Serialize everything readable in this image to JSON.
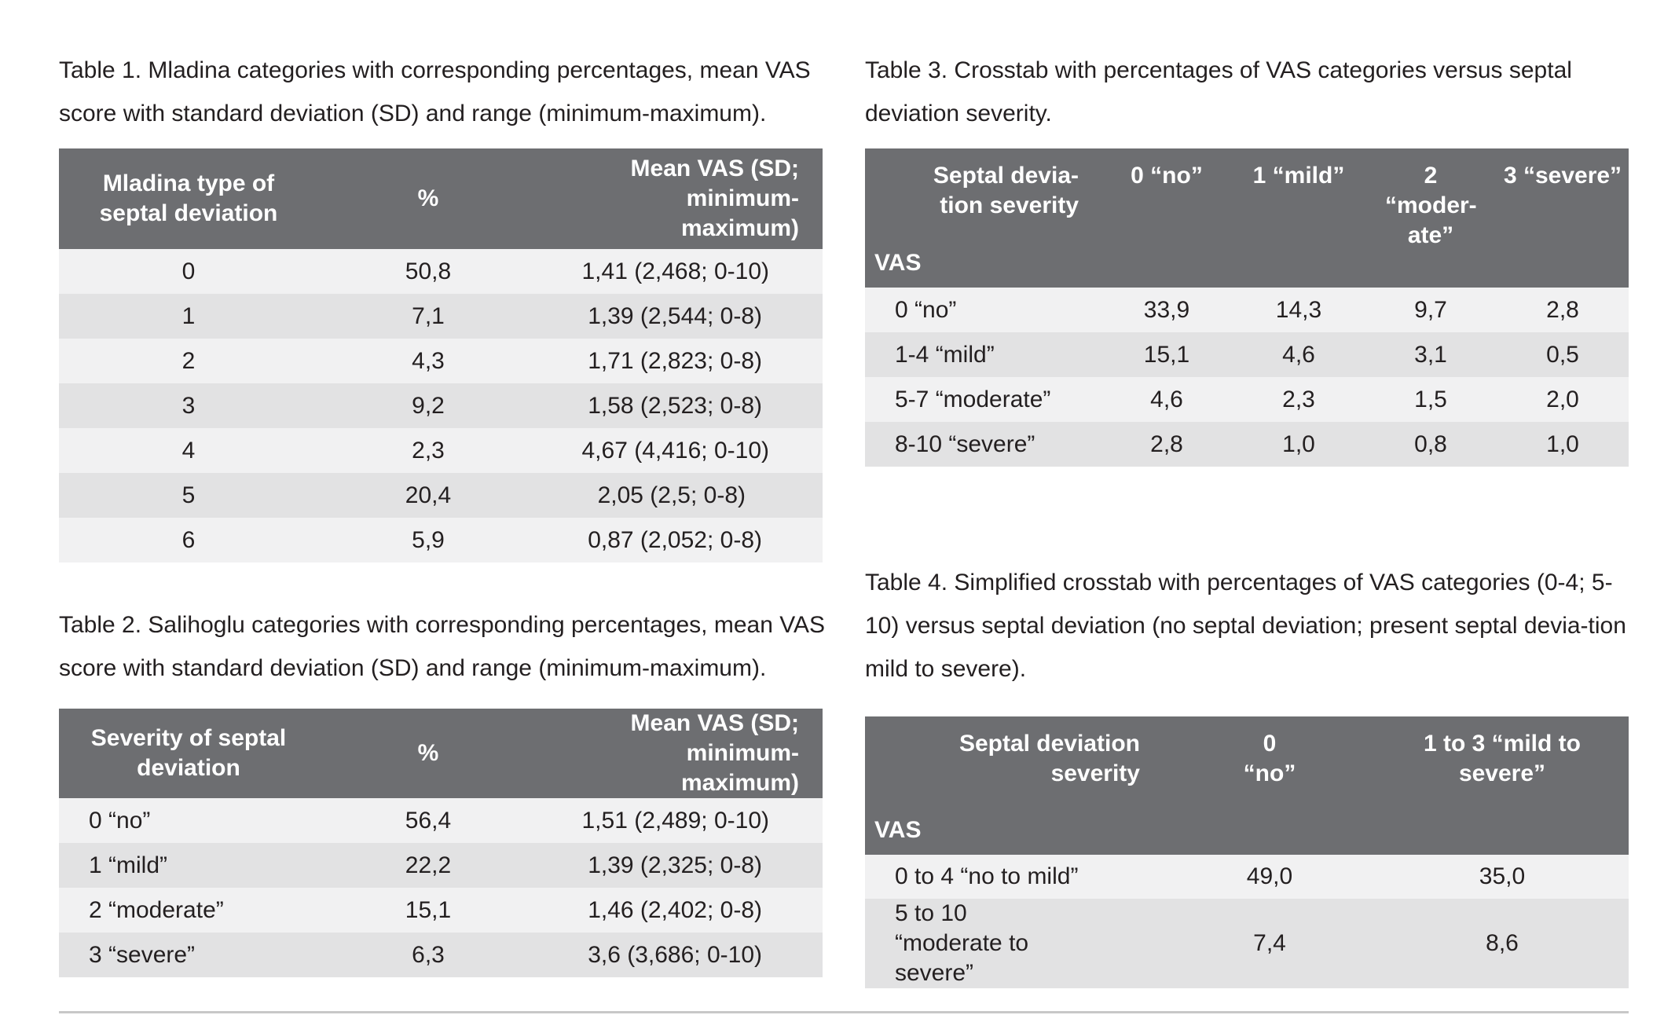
{
  "table1": {
    "caption": "Table 1. Mladina categories with corresponding percentages, mean VAS score with standard deviation (SD) and range (minimum-maximum).",
    "headers": [
      "Mladina type of septal deviation",
      "%",
      "Mean VAS (SD; minimum-maximum)"
    ],
    "rows": [
      [
        "0",
        "50,8",
        "1,41 (2,468; 0-10)"
      ],
      [
        "1",
        "7,1",
        "1,39 (2,544; 0-8)"
      ],
      [
        "2",
        "4,3",
        "1,71 (2,823; 0-8)"
      ],
      [
        "3",
        "9,2",
        "1,58 (2,523; 0-8)"
      ],
      [
        "4",
        "2,3",
        "4,67 (4,416; 0-10)"
      ],
      [
        "5",
        "20,4",
        "2,05 (2,5; 0-8)"
      ],
      [
        "6",
        "5,9",
        "0,87 (2,052; 0-8)"
      ]
    ]
  },
  "table2": {
    "caption": "Table 2. Salihoglu categories with corresponding percentages, mean VAS score with standard deviation (SD) and range (minimum-maximum).",
    "headers": [
      "Severity of septal deviation",
      "%",
      "Mean VAS (SD; minimum-maximum)"
    ],
    "rows": [
      [
        "0 “no”",
        "56,4",
        "1,51 (2,489; 0-10)"
      ],
      [
        "1 “mild”",
        "22,2",
        "1,39 (2,325; 0-8)"
      ],
      [
        "2 “moderate”",
        "15,1",
        "1,46 (2,402; 0-8)"
      ],
      [
        "3 “severe”",
        "6,3",
        "3,6 (3,686; 0-10)"
      ]
    ]
  },
  "table3": {
    "caption": "Table 3. Crosstab with percentages of VAS categories versus septal deviation severity.",
    "corner_top": "Septal devia-tion severity",
    "corner_bottom": "VAS",
    "headers": [
      "0 “no”",
      "1 “mild”",
      "2 “moder-ate”",
      "3 “severe”"
    ],
    "rows": [
      [
        "0 “no”",
        "33,9",
        "14,3",
        "9,7",
        "2,8"
      ],
      [
        "1-4 “mild”",
        "15,1",
        "4,6",
        "3,1",
        "0,5"
      ],
      [
        "5-7 “moderate”",
        "4,6",
        "2,3",
        "1,5",
        "2,0"
      ],
      [
        "8-10 “severe”",
        "2,8",
        "1,0",
        "0,8",
        "1,0"
      ]
    ]
  },
  "table4": {
    "caption": "Table 4. Simplified crosstab with percentages of VAS categories (0-4; 5-10) versus septal deviation (no septal deviation; present septal devia-tion mild to severe).",
    "corner_top": "Septal deviation severity",
    "corner_bottom": "VAS",
    "headers": [
      "0 “no”",
      "1 to 3 “mild to severe”"
    ],
    "rows": [
      [
        "0 to 4 “no to mild”",
        "49,0",
        "35,0"
      ],
      [
        "5 to 10 “moderate to severe”",
        "7,4",
        "8,6"
      ]
    ]
  }
}
